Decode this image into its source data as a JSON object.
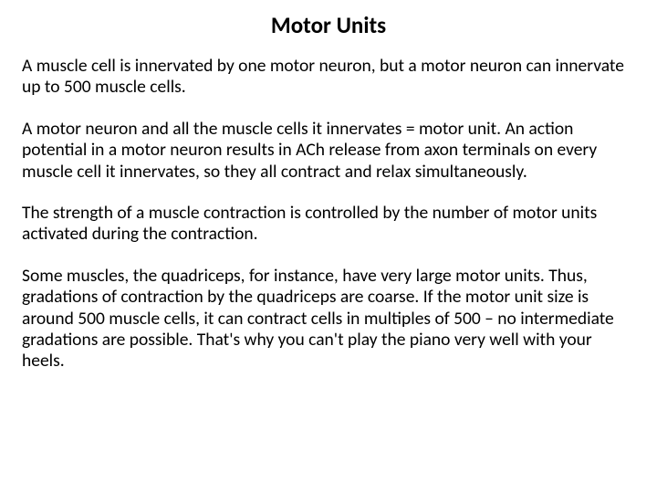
{
  "title": "Motor Units",
  "paragraphs": [
    "A muscle cell is innervated by one motor neuron, but a motor neuron can innervate up to 500 muscle cells.",
    "A motor neuron and all the muscle cells it innervates = motor unit. An action potential in a motor neuron results in ACh release from axon terminals on every muscle cell it innervates, so they all contract and relax simultaneously.",
    "The strength of a muscle contraction is controlled by the number of motor units activated during the contraction.",
    "Some muscles, the quadriceps, for instance, have very large motor units.  Thus, gradations of contraction by the quadriceps are coarse. If the motor unit size is around 500 muscle cells, it can contract cells in multiples of 500 – no intermediate gradations are possible. That's why you can't play the piano very well with your heels."
  ],
  "style": {
    "background_color": "#ffffff",
    "text_color": "#000000",
    "title_fontsize": 25,
    "title_fontweight": 700,
    "body_fontsize": 19.5,
    "font_family": "Calibri, Arial, sans-serif"
  }
}
